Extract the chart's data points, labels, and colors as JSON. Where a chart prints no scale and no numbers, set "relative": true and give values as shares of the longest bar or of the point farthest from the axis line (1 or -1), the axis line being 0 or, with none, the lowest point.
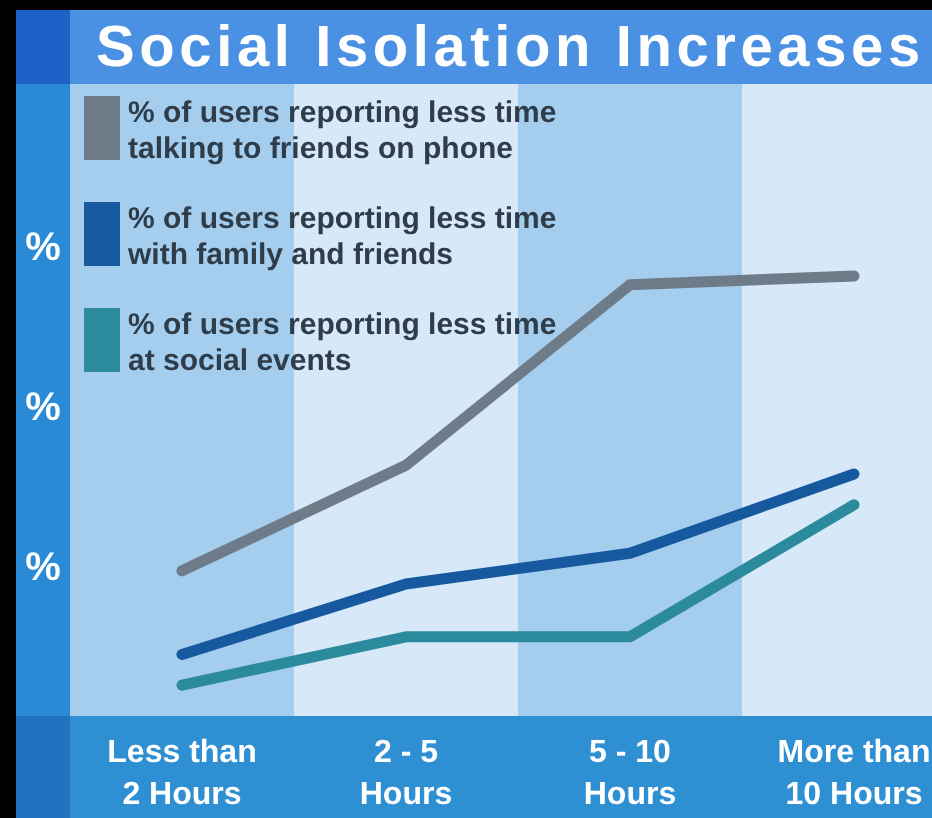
{
  "chart_data": {
    "type": "line",
    "title": "Social Isolation Increases",
    "categories": [
      "Less than 2 Hours",
      "2 - 5 Hours",
      "5 - 10 Hours",
      "More than 10 Hours"
    ],
    "relative": true,
    "series": [
      {
        "name": "% of users reporting less time talking to friends on phone",
        "color": "#6e7b88",
        "values": [
          0.33,
          0.57,
          0.98,
          1
        ]
      },
      {
        "name": "% of users reporting less time with family and friends",
        "color": "#16599f",
        "values": [
          0.14,
          0.3,
          0.37,
          0.55
        ]
      },
      {
        "name": "% of users reporting less time at social events",
        "color": "#2b8b9c",
        "values": [
          0.07,
          0.18,
          0.18,
          0.48
        ]
      }
    ],
    "bands": [
      {
        "axis": "x",
        "from": "Less than 2 Hours",
        "to": "Less than 2 Hours",
        "color": "#a5cdee"
      },
      {
        "axis": "x",
        "from": "5 - 10 Hours",
        "to": "5 - 10 Hours",
        "color": "#a5cdee"
      }
    ],
    "annotations": [
      "%",
      "%",
      "%"
    ],
    "legend": "top left",
    "line_style": "solid"
  }
}
